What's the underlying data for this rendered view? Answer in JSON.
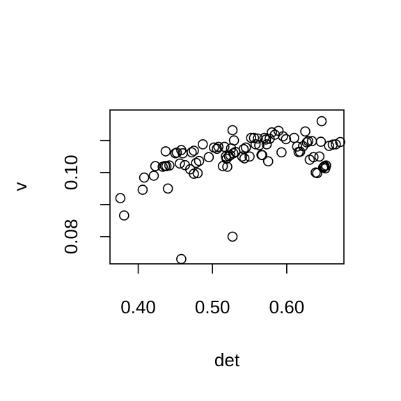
{
  "chart_data": {
    "type": "scatter",
    "title": "",
    "xlabel": "det",
    "ylabel": "v",
    "x_ticks": [
      0.4,
      0.5,
      0.6
    ],
    "x_tick_labels": [
      "0.40",
      "0.50",
      "0.60"
    ],
    "y_ticks": [
      0.08,
      0.09,
      0.1,
      0.11
    ],
    "y_tick_labels": [
      "0.08",
      "",
      "0.10",
      ""
    ],
    "xlim": [
      0.362,
      0.677
    ],
    "ylim": [
      0.0715,
      0.1195
    ],
    "grid": false,
    "points": [
      [
        0.376,
        0.092
      ],
      [
        0.381,
        0.0866
      ],
      [
        0.406,
        0.0946
      ],
      [
        0.408,
        0.0984
      ],
      [
        0.421,
        0.099
      ],
      [
        0.423,
        0.102
      ],
      [
        0.433,
        0.1018
      ],
      [
        0.436,
        0.102
      ],
      [
        0.438,
        0.102
      ],
      [
        0.437,
        0.1066
      ],
      [
        0.44,
        0.095
      ],
      [
        0.442,
        0.1022
      ],
      [
        0.45,
        0.106
      ],
      [
        0.452,
        0.1062
      ],
      [
        0.456,
        0.1028
      ],
      [
        0.458,
        0.073
      ],
      [
        0.458,
        0.107
      ],
      [
        0.46,
        0.106
      ],
      [
        0.463,
        0.1023
      ],
      [
        0.47,
        0.101
      ],
      [
        0.472,
        0.1063
      ],
      [
        0.475,
        0.0996
      ],
      [
        0.475,
        0.1068
      ],
      [
        0.478,
        0.103
      ],
      [
        0.48,
        0.0998
      ],
      [
        0.482,
        0.1036
      ],
      [
        0.487,
        0.1088
      ],
      [
        0.495,
        0.1048
      ],
      [
        0.502,
        0.1078
      ],
      [
        0.506,
        0.1074
      ],
      [
        0.508,
        0.108
      ],
      [
        0.514,
        0.102
      ],
      [
        0.516,
        0.108
      ],
      [
        0.518,
        0.105
      ],
      [
        0.519,
        0.1043
      ],
      [
        0.52,
        0.1018
      ],
      [
        0.522,
        0.1051
      ],
      [
        0.524,
        0.1054
      ],
      [
        0.525,
        0.1075
      ],
      [
        0.527,
        0.08
      ],
      [
        0.527,
        0.1132
      ],
      [
        0.528,
        0.106
      ],
      [
        0.529,
        0.11
      ],
      [
        0.531,
        0.1064
      ],
      [
        0.54,
        0.105
      ],
      [
        0.542,
        0.1073
      ],
      [
        0.543,
        0.1044
      ],
      [
        0.545,
        0.1078
      ],
      [
        0.55,
        0.105
      ],
      [
        0.552,
        0.1108
      ],
      [
        0.556,
        0.1108
      ],
      [
        0.558,
        0.1088
      ],
      [
        0.561,
        0.1106
      ],
      [
        0.563,
        0.1085
      ],
      [
        0.566,
        0.1055
      ],
      [
        0.567,
        0.1054
      ],
      [
        0.57,
        0.1108
      ],
      [
        0.572,
        0.1103
      ],
      [
        0.573,
        0.1088
      ],
      [
        0.575,
        0.1035
      ],
      [
        0.577,
        0.1105
      ],
      [
        0.58,
        0.1125
      ],
      [
        0.584,
        0.1118
      ],
      [
        0.589,
        0.113
      ],
      [
        0.593,
        0.1063
      ],
      [
        0.595,
        0.1113
      ],
      [
        0.599,
        0.1104
      ],
      [
        0.61,
        0.1108
      ],
      [
        0.614,
        0.1081
      ],
      [
        0.616,
        0.1064
      ],
      [
        0.618,
        0.1065
      ],
      [
        0.622,
        0.1082
      ],
      [
        0.625,
        0.1128
      ],
      [
        0.627,
        0.1094
      ],
      [
        0.629,
        0.1098
      ],
      [
        0.631,
        0.104
      ],
      [
        0.634,
        0.1098
      ],
      [
        0.636,
        0.1048
      ],
      [
        0.639,
        0.1
      ],
      [
        0.641,
        0.0998
      ],
      [
        0.644,
        0.105
      ],
      [
        0.646,
        0.1096
      ],
      [
        0.647,
        0.116
      ],
      [
        0.649,
        0.1015
      ],
      [
        0.65,
        0.1018
      ],
      [
        0.651,
        0.102
      ],
      [
        0.652,
        0.1013
      ],
      [
        0.653,
        0.1022
      ],
      [
        0.657,
        0.1083
      ],
      [
        0.662,
        0.1087
      ],
      [
        0.666,
        0.1088
      ],
      [
        0.672,
        0.1095
      ]
    ]
  }
}
